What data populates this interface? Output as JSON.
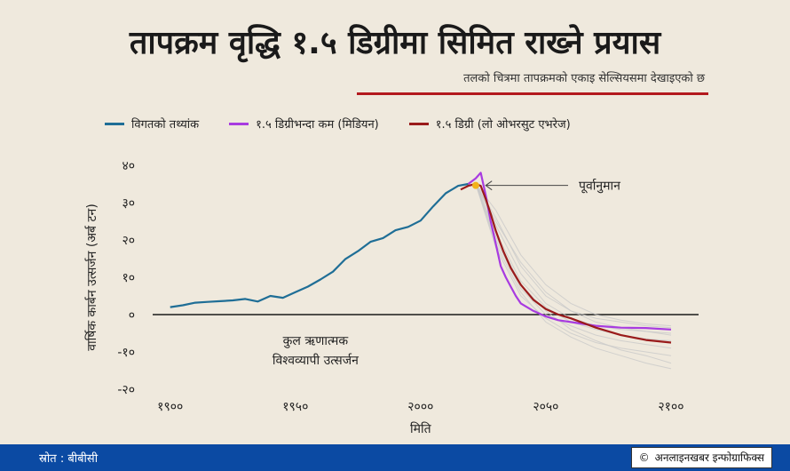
{
  "title": "तापक्रम वृद्धि १.५ डिग्रीमा सिमित राख्ने प्रयास",
  "subtitle": "तलको चित्रमा तापक्रमको एकाइ सेल्सियसमा देखाइएको छ",
  "footer": {
    "source": "स्रोत : बीबीसी",
    "copyright_symbol": "©",
    "credit": "अनलाइनखबर इन्फोग्राफिक्स"
  },
  "colors": {
    "historical": "#1f6e96",
    "median": "#a83be0",
    "overshoot": "#9a1b1b",
    "scenarios": "#c9c9c9",
    "marker": "#f2b21b",
    "accent_rule": "#b3191e",
    "footer_bg": "#0b4aa3"
  },
  "chart_data": {
    "type": "line",
    "xlabel": "मिति",
    "ylabel": "वार्षिक कार्बन उत्सर्जन (अर्ब टन)",
    "xlim": [
      1893,
      2111
    ],
    "ylim": [
      -20,
      40
    ],
    "x_ticks": [
      1900,
      1950,
      2000,
      2050,
      2100
    ],
    "x_tick_labels": [
      "१९००",
      "१९५०",
      "२०००",
      "२०५०",
      "२१००"
    ],
    "y_ticks": [
      40,
      30,
      20,
      10,
      0,
      -10,
      -20
    ],
    "y_tick_labels": [
      "४०",
      "३०",
      "२०",
      "१०",
      "०",
      "-१०",
      "-२०"
    ],
    "zero_line": true,
    "legend_placement": "top",
    "series": [
      {
        "name": "विगतको तथ्यांक",
        "color_key": "historical",
        "x": [
          1900,
          1905,
          1910,
          1915,
          1920,
          1925,
          1930,
          1935,
          1940,
          1945,
          1950,
          1955,
          1960,
          1965,
          1970,
          1975,
          1980,
          1985,
          1990,
          1995,
          2000,
          2005,
          2010,
          2015,
          2019
        ],
        "y": [
          2,
          2.5,
          3.2,
          3.4,
          3.6,
          3.8,
          4.2,
          3.5,
          5,
          4.5,
          6,
          7.5,
          9.4,
          11.5,
          14.9,
          17,
          19.5,
          20.5,
          22.6,
          23.5,
          25.2,
          29,
          32.5,
          34.5,
          35
        ]
      },
      {
        "name": "१.५ डिग्रीभन्दा कम (मिडियन)",
        "color_key": "median",
        "x": [
          2019,
          2022,
          2024,
          2026,
          2028,
          2030,
          2032,
          2034,
          2036,
          2038,
          2040,
          2045,
          2050,
          2055,
          2060,
          2070,
          2080,
          2090,
          2100
        ],
        "y": [
          35,
          36.5,
          38,
          32,
          25,
          19,
          13,
          10,
          7.5,
          5,
          3,
          1,
          -0.5,
          -1.5,
          -2,
          -3,
          -3.5,
          -3.6,
          -4
        ]
      },
      {
        "name": "१.५ डिग्री (लो ओभरसुट एभरेज)",
        "color_key": "overshoot",
        "x": [
          2016,
          2019,
          2022,
          2024,
          2026,
          2028,
          2030,
          2033,
          2036,
          2040,
          2045,
          2050,
          2055,
          2060,
          2070,
          2080,
          2090,
          2100
        ],
        "y": [
          33.5,
          34.5,
          35,
          34.5,
          31,
          27,
          22.5,
          17,
          12.5,
          8,
          4,
          1.5,
          0,
          -1,
          -3.5,
          -5.5,
          -6.8,
          -7.5
        ]
      }
    ],
    "scenario_bundle": {
      "x": [
        2022,
        2030,
        2040,
        2050,
        2060,
        2070,
        2080,
        2090,
        2100
      ],
      "lines": [
        [
          35,
          26,
          13,
          5,
          1,
          -1,
          -2,
          -3,
          -3.5
        ],
        [
          35,
          24,
          11,
          3,
          -1,
          -3,
          -4,
          -4.5,
          -5
        ],
        [
          35,
          22,
          9,
          2,
          -2,
          -4,
          -5.5,
          -6.5,
          -7
        ],
        [
          35,
          20,
          7,
          0,
          -3,
          -5.5,
          -7,
          -8,
          -9
        ],
        [
          35,
          18,
          5,
          -1,
          -5,
          -7.5,
          -9,
          -10,
          -11
        ],
        [
          35,
          28,
          16,
          8,
          3,
          0,
          -1.5,
          -2.5,
          -3
        ],
        [
          35,
          21,
          8,
          1,
          -4,
          -7,
          -9.5,
          -11,
          -13
        ],
        [
          35,
          19,
          6,
          -2,
          -6,
          -9,
          -11,
          -13,
          -14.5
        ],
        [
          35,
          25,
          14,
          6,
          1,
          -2,
          -3.5,
          -4.5,
          -5.5
        ]
      ]
    },
    "annotations": [
      {
        "text": "पूर्वानुमान",
        "x": 2026,
        "y": 35
      },
      {
        "text_lines": [
          "कुल ऋणात्मक",
          "विश्वव्यापी उत्सर्जन"
        ],
        "x": 1958,
        "y": -10
      }
    ]
  }
}
